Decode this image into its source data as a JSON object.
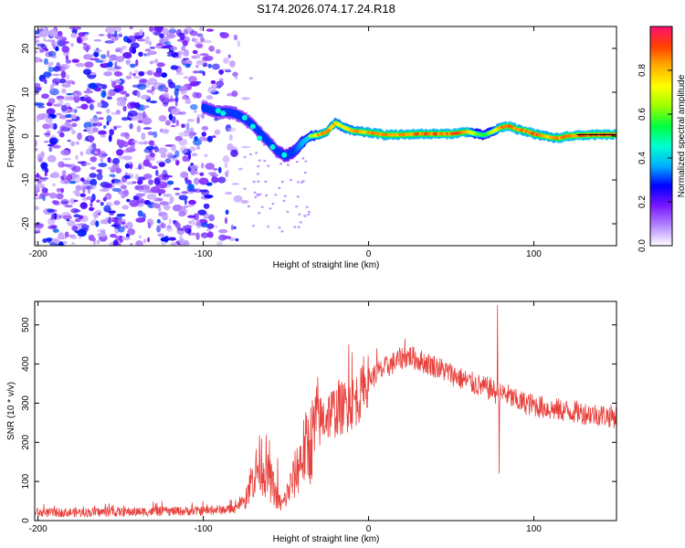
{
  "title": "S174.2026.074.17.24.R18",
  "colors": {
    "signal": "#e8413c",
    "axis": "#000000",
    "background": "#ffffff",
    "trace_line": "#000000"
  },
  "chart_data": [
    {
      "type": "heatmap",
      "name": "spectrogram",
      "xlabel": "Height of straight line (km)",
      "ylabel": "Frequency (Hz)",
      "xlim": [
        -202,
        150
      ],
      "ylim": [
        -25,
        25
      ],
      "xticks": [
        -200,
        -100,
        0,
        100
      ],
      "yticks": [
        -20,
        -10,
        0,
        10,
        20
      ],
      "colorbar": {
        "label": "Normalized spectral amplitude",
        "range": [
          0,
          1
        ],
        "ticks": [
          "0.0",
          "0.2",
          "0.4",
          "0.6",
          "0.8"
        ],
        "tick_values": [
          0,
          0.2,
          0.4,
          0.6,
          0.8
        ],
        "colormap": [
          "#ffffff",
          "#b388ff",
          "#7a16ff",
          "#0000ff",
          "#00b0ff",
          "#00ffd0",
          "#00ff40",
          "#9cff00",
          "#ffff00",
          "#ffb000",
          "#ff4000",
          "#ff1070"
        ]
      },
      "trace": {
        "description": "frequency of the strongest spectral component vs height",
        "x": [
          -100,
          -92,
          -85,
          -80,
          -75,
          -70,
          -65,
          -60,
          -55,
          -50,
          -45,
          -40,
          -35,
          -30,
          -25,
          -20,
          -15,
          -10,
          -5,
          0,
          10,
          20,
          30,
          40,
          50,
          60,
          65,
          70,
          75,
          80,
          85,
          90,
          95,
          100,
          105,
          110,
          115,
          120,
          130,
          140,
          150
        ],
        "y": [
          6.5,
          5.5,
          5.5,
          5.0,
          4.0,
          2.5,
          0.5,
          -1.5,
          -3.5,
          -4.5,
          -3.5,
          -1.5,
          0.0,
          0.3,
          1.0,
          3.0,
          2.0,
          1.2,
          1.0,
          0.8,
          0.3,
          0.3,
          0.5,
          0.5,
          0.5,
          1.0,
          0.5,
          0.2,
          1.0,
          2.0,
          2.3,
          1.5,
          1.2,
          0.5,
          0.1,
          -0.3,
          -0.5,
          0.0,
          0.2,
          0.3,
          0.3
        ],
        "amplitude": [
          0.35,
          0.3,
          0.3,
          0.25,
          0.25,
          0.25,
          0.3,
          0.35,
          0.4,
          0.45,
          0.5,
          0.6,
          0.7,
          0.85,
          0.9,
          0.85,
          0.8,
          0.85,
          0.88,
          0.9,
          0.92,
          0.92,
          0.92,
          0.93,
          0.95,
          0.9,
          0.7,
          0.6,
          0.7,
          0.9,
          0.95,
          0.9,
          0.92,
          0.95,
          0.9,
          0.88,
          0.92,
          0.95,
          0.95,
          0.95,
          0.95
        ]
      },
      "noise_region_x": [
        -202,
        -75
      ]
    },
    {
      "type": "line",
      "name": "snr",
      "xlabel": "Height of straight line (km)",
      "ylabel": "SNR (10 * v/v)",
      "xlim": [
        -202,
        150
      ],
      "ylim": [
        0,
        560
      ],
      "xticks": [
        -200,
        -100,
        0,
        100
      ],
      "yticks": [
        0,
        100,
        200,
        300,
        400,
        500
      ],
      "series": [
        {
          "name": "SNR",
          "envelope_x": [
            -202,
            -150,
            -100,
            -80,
            -75,
            -70,
            -65,
            -62,
            -58,
            -55,
            -52,
            -48,
            -45,
            -40,
            -35,
            -30,
            -25,
            -20,
            -15,
            -10,
            -5,
            0,
            10,
            20,
            25,
            30,
            40,
            50,
            60,
            70,
            75,
            78,
            82,
            90,
            100,
            110,
            120,
            130,
            140,
            150
          ],
          "envelope_y": [
            20,
            22,
            25,
            30,
            60,
            110,
            150,
            120,
            90,
            50,
            40,
            80,
            110,
            170,
            200,
            250,
            270,
            280,
            290,
            300,
            320,
            360,
            390,
            415,
            420,
            410,
            395,
            375,
            355,
            340,
            335,
            320,
            325,
            305,
            295,
            285,
            280,
            275,
            270,
            265
          ],
          "spikes": [
            {
              "x": -62,
              "y": 220
            },
            {
              "x": -60,
              "y": 205
            },
            {
              "x": -55,
              "y": 160
            },
            {
              "x": -32,
              "y": 310
            },
            {
              "x": -18,
              "y": 360
            },
            {
              "x": -12,
              "y": 450
            },
            {
              "x": -10,
              "y": 430
            },
            {
              "x": -3,
              "y": 420
            },
            {
              "x": 5,
              "y": 440
            },
            {
              "x": 22,
              "y": 465
            },
            {
              "x": 78,
              "y": 550
            },
            {
              "x": 79,
              "y": 120
            }
          ]
        }
      ]
    }
  ]
}
